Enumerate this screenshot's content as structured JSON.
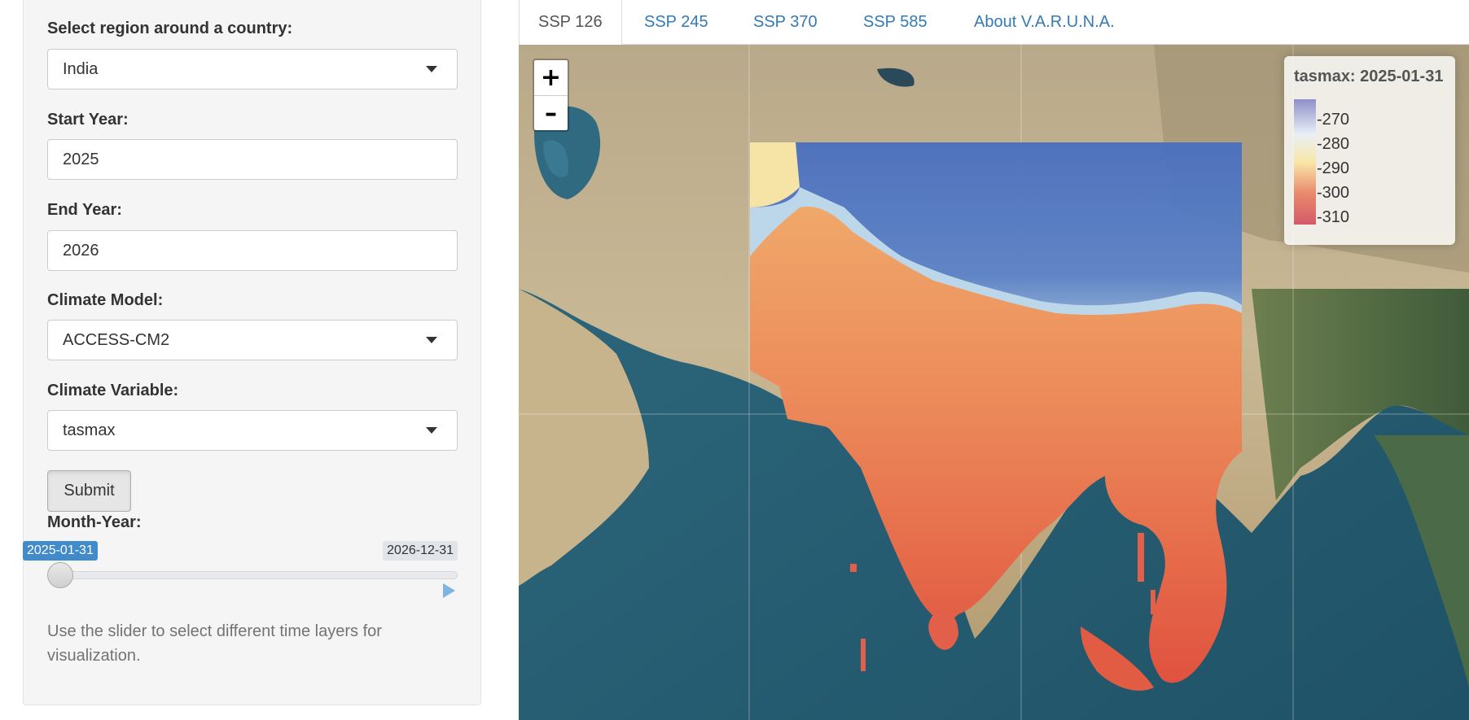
{
  "sidebar": {
    "country_label": "Select region around a country:",
    "country_value": "India",
    "start_label": "Start Year:",
    "start_value": "2025",
    "end_label": "End Year:",
    "end_value": "2026",
    "model_label": "Climate Model:",
    "model_value": "ACCESS-CM2",
    "variable_label": "Climate Variable:",
    "variable_value": "tasmax",
    "submit_label": "Submit",
    "month_label": "Month-Year:",
    "slider_from": "2025-01-31",
    "slider_to": "2026-12-31",
    "slider_position": 0.0,
    "help_text": "Use the slider to select different time layers for visualization."
  },
  "tabs": [
    {
      "label": "SSP 126",
      "active": true
    },
    {
      "label": "SSP 245",
      "active": false
    },
    {
      "label": "SSP 370",
      "active": false
    },
    {
      "label": "SSP 585",
      "active": false
    },
    {
      "label": "About V.A.R.U.N.A.",
      "active": false
    }
  ],
  "map": {
    "zoom_in": "+",
    "zoom_out": "–",
    "legend": {
      "title": "tasmax: 2025-01-31",
      "ticks": [
        "270",
        "280",
        "290",
        "300",
        "310"
      ],
      "colors": [
        "#8e8fc8",
        "#e9f0f6",
        "#f8e7a8",
        "#e98a6c",
        "#d35a6a"
      ]
    }
  },
  "colors": {
    "accent": "#428bca",
    "link": "#337ab7"
  }
}
